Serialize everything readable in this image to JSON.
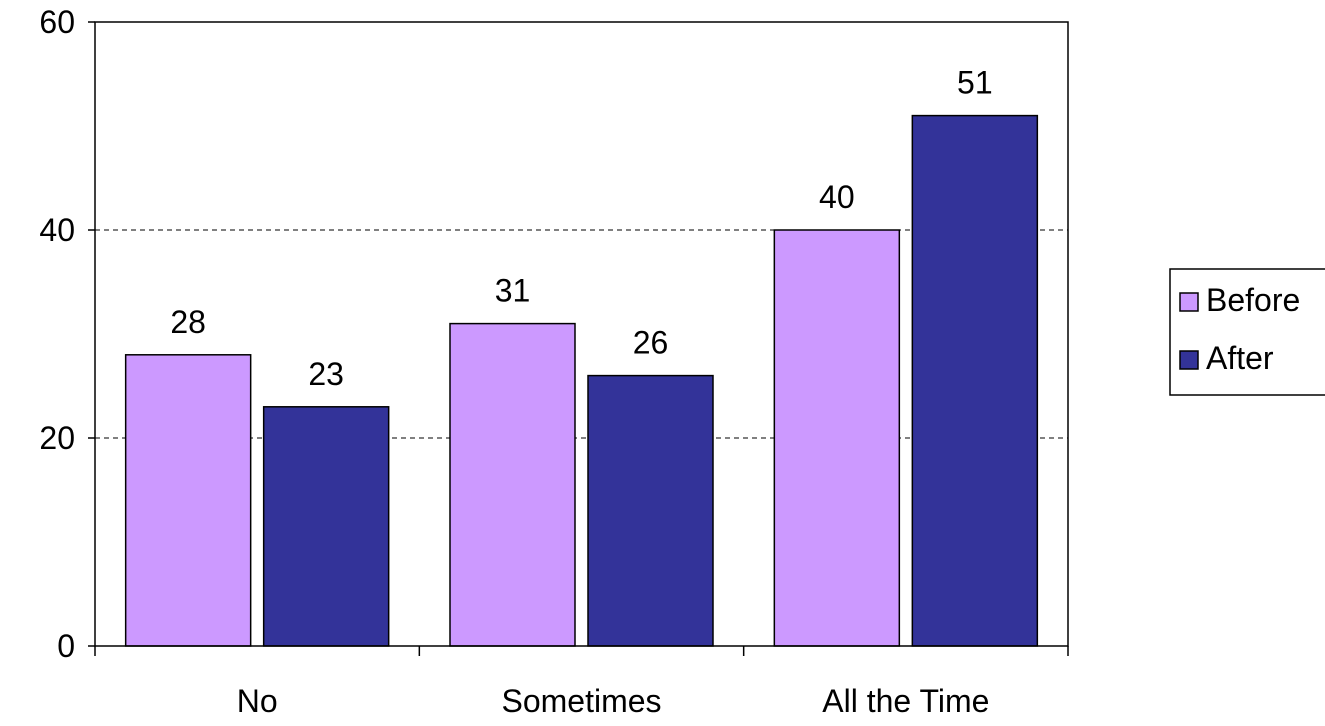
{
  "chart_data": {
    "type": "bar",
    "title": "",
    "xlabel": "",
    "ylabel": "",
    "categories": [
      "No",
      "Sometimes",
      "All the Time"
    ],
    "series": [
      {
        "name": "Before",
        "values": [
          28,
          31,
          40
        ],
        "color": "#cc99ff"
      },
      {
        "name": "After",
        "values": [
          23,
          26,
          51
        ],
        "color": "#333399"
      }
    ],
    "ylim": [
      0,
      60
    ],
    "yticks": [
      0,
      20,
      40,
      60
    ],
    "grid": "dashed horizontal",
    "legend": "right"
  }
}
